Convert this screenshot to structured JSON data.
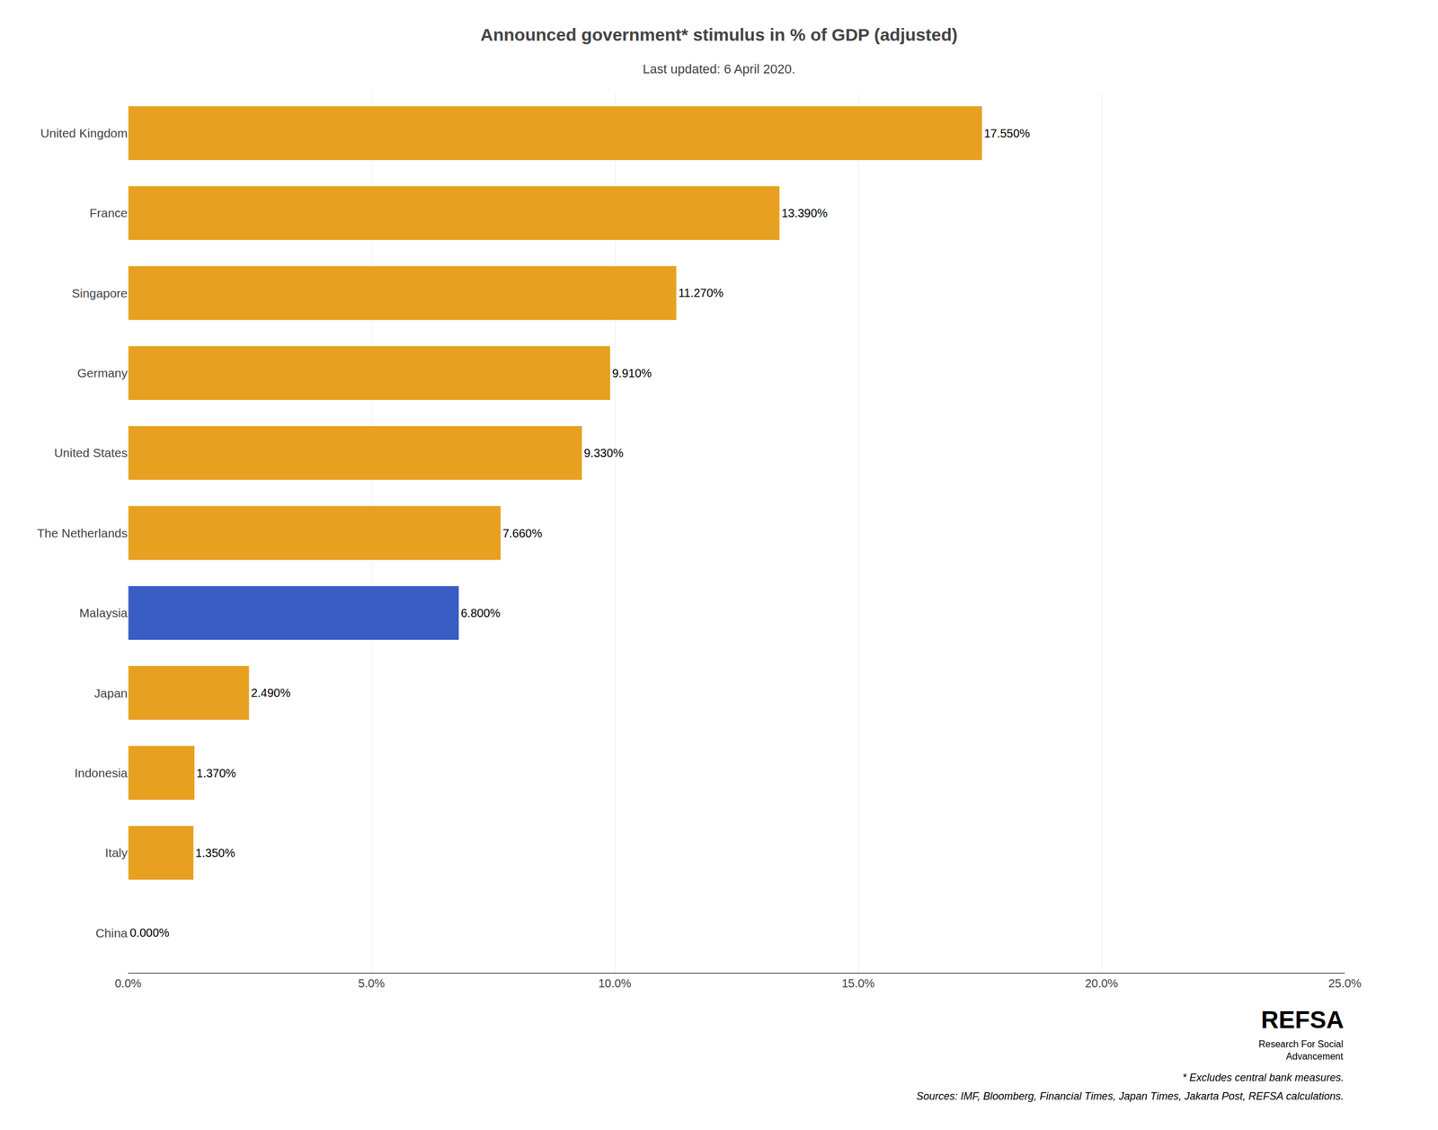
{
  "chart_data": {
    "type": "bar",
    "orientation": "horizontal",
    "title": "Announced government* stimulus in % of GDP (adjusted)",
    "subtitle": "Last updated: 6 April 2020.",
    "categories": [
      "United Kingdom",
      "France",
      "Singapore",
      "Germany",
      "United States",
      "The Netherlands",
      "Malaysia",
      "Japan",
      "Indonesia",
      "Italy",
      "China"
    ],
    "values": [
      17.55,
      13.39,
      11.27,
      9.91,
      9.33,
      7.66,
      6.8,
      2.49,
      1.37,
      1.35,
      0.0
    ],
    "value_labels": [
      "17.550%",
      "13.390%",
      "11.270%",
      "9.910%",
      "9.330%",
      "7.660%",
      "6.800%",
      "2.490%",
      "1.370%",
      "1.350%",
      "0.000%"
    ],
    "data_labels": true,
    "colors": [
      "#E8A020",
      "#E8A020",
      "#E8A020",
      "#E8A020",
      "#E8A020",
      "#E8A020",
      "#3A5CC5",
      "#E8A020",
      "#E8A020",
      "#E8A020",
      "#E8A020"
    ],
    "xlim": [
      0,
      25
    ],
    "xticks": [
      {
        "value": 0,
        "label": "0.0%"
      },
      {
        "value": 5,
        "label": "5.0%"
      },
      {
        "value": 10,
        "label": "10.0%"
      },
      {
        "value": 15,
        "label": "15.0%"
      },
      {
        "value": 20,
        "label": "20.0%"
      },
      {
        "value": 25,
        "label": "25.0%"
      }
    ],
    "grid": "x",
    "annotations": [
      "REFSA",
      "Research For Social\nAdvancement",
      "* Excludes central bank measures.",
      "Sources: IMF, Bloomberg, Financial Times, Japan Times, Jakarta Post, REFSA calculations."
    ]
  }
}
